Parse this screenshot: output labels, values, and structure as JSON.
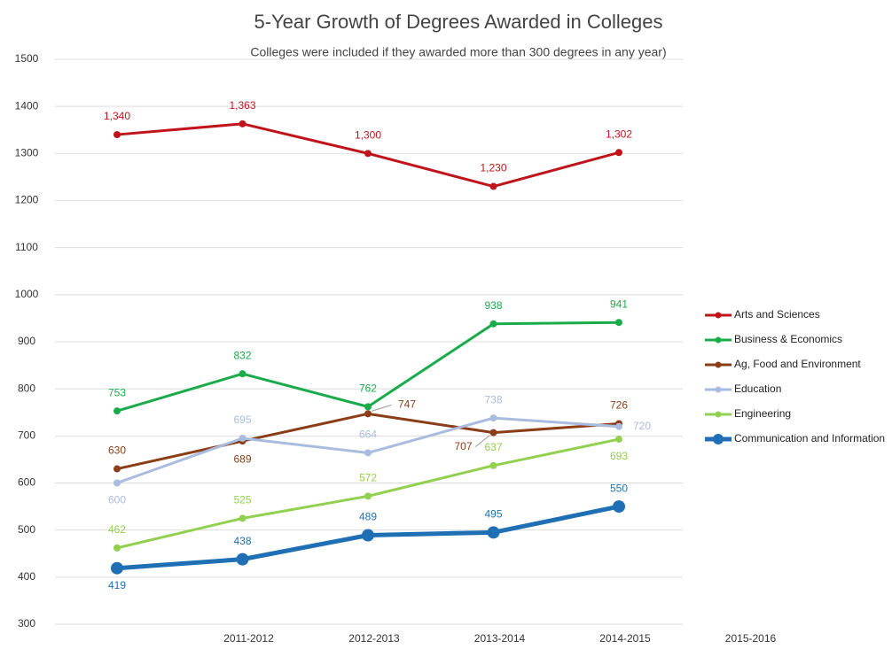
{
  "chart_data": {
    "type": "line",
    "title": "5-Year Growth of Degrees Awarded in Colleges",
    "subtitle": "Colleges were included if they awarded more than 300 degrees in any year)",
    "categories": [
      null,
      "2011-2012",
      "2012-2013",
      "2013-2014",
      "2014-2015",
      "2015-2016"
    ],
    "series": [
      {
        "name": "Arts and Sciences",
        "color": "#c0141b",
        "values": [
          1340,
          1363,
          1300,
          1230,
          1302,
          null
        ],
        "value_labels": [
          "1,340",
          "1,363",
          "1,300",
          "1,230",
          "1,302",
          null
        ]
      },
      {
        "name": "Business & Economics",
        "color": "#1aab4b",
        "values": [
          753,
          832,
          762,
          938,
          941,
          null
        ]
      },
      {
        "name": "Ag, Food and Environment",
        "color": "#8b3d17",
        "values": [
          630,
          689,
          747,
          707,
          726,
          null
        ]
      },
      {
        "name": "Education",
        "color": "#a9bce0",
        "values": [
          600,
          695,
          664,
          738,
          720,
          null
        ]
      },
      {
        "name": "Engineering",
        "color": "#92d050",
        "values": [
          462,
          525,
          572,
          637,
          693,
          null
        ]
      },
      {
        "name": "Communication and Information",
        "color": "#1f6fb4",
        "values": [
          419,
          438,
          489,
          495,
          550,
          null
        ]
      }
    ],
    "ylim": [
      300,
      1500
    ],
    "yticks": [
      300,
      400,
      500,
      600,
      700,
      800,
      900,
      1000,
      1100,
      1200,
      1300,
      1400,
      1500
    ],
    "grid": true,
    "legend": "right"
  }
}
